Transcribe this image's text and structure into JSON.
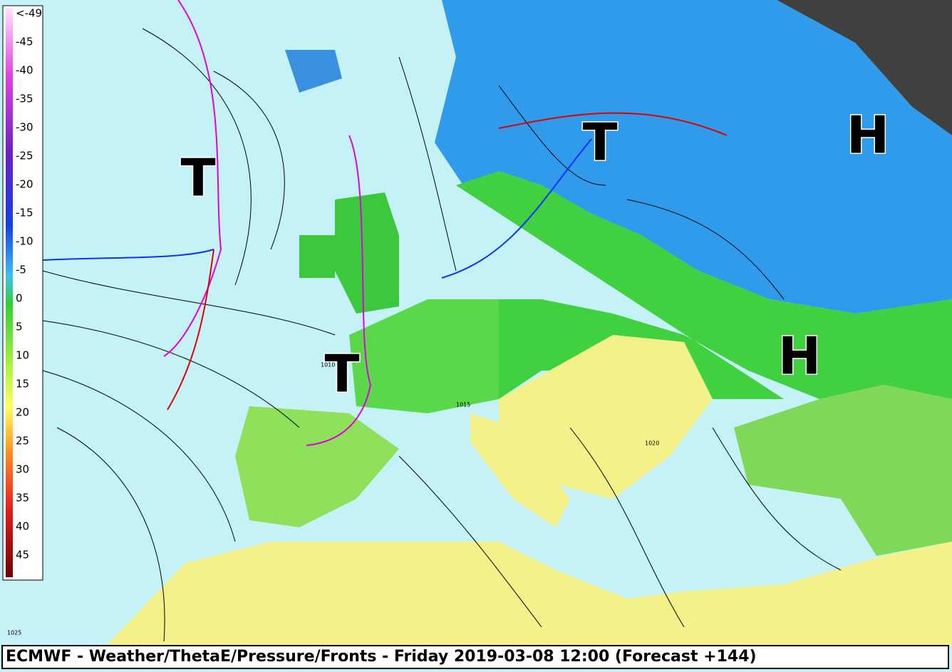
{
  "legend": {
    "labels": [
      "<-49",
      "-45",
      "-40",
      "-35",
      "-30",
      "-25",
      "-20",
      "-15",
      "-10",
      "-5",
      "0",
      "5",
      "10",
      "15",
      "20",
      "25",
      "30",
      "35",
      "40",
      "45"
    ]
  },
  "pressure_centers": [
    "T",
    "T",
    "T",
    "H",
    "H"
  ],
  "isobar_labels": [
    "1010",
    "1015",
    "1020",
    "1025"
  ],
  "footer": {
    "title": "ECMWF - Weather/ThetaE/Pressure/Fronts - Friday 2019-03-08 12:00 (Forecast +144)"
  }
}
